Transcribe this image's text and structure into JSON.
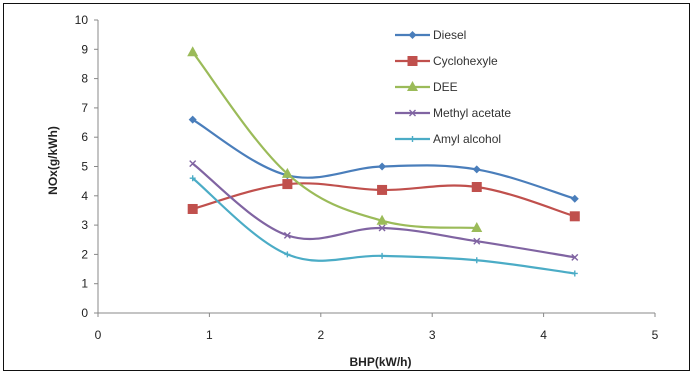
{
  "chart_data": {
    "type": "line",
    "title": "",
    "xlabel": "BHP(kW/h)",
    "ylabel": "NOx(g/kWh)",
    "xlim": [
      0,
      5
    ],
    "ylim": [
      0,
      10
    ],
    "xticks": [
      0,
      1,
      2,
      3,
      4,
      5
    ],
    "yticks": [
      0,
      1,
      2,
      3,
      4,
      5,
      6,
      7,
      8,
      9,
      10
    ],
    "grid": false,
    "legend_position": "top-right",
    "series": [
      {
        "name": "Diesel",
        "color": "#4a7ebb",
        "marker": "diamond",
        "x": [
          0.85,
          1.7,
          2.55,
          3.4,
          4.28
        ],
        "y": [
          6.6,
          4.7,
          5.0,
          4.9,
          3.9
        ]
      },
      {
        "name": "Cyclohexyle",
        "color": "#c0504d",
        "marker": "square",
        "x": [
          0.85,
          1.7,
          2.55,
          3.4,
          4.28
        ],
        "y": [
          3.55,
          4.4,
          4.2,
          4.3,
          3.3
        ]
      },
      {
        "name": "DEE",
        "color": "#9bbb59",
        "marker": "triangle",
        "x": [
          0.85,
          1.7,
          2.55,
          3.4
        ],
        "y": [
          8.9,
          4.75,
          3.15,
          2.9
        ]
      },
      {
        "name": "Methyl acetate",
        "color": "#8064a2",
        "marker": "x",
        "x": [
          0.85,
          1.7,
          2.55,
          3.4,
          4.28
        ],
        "y": [
          5.1,
          2.65,
          2.9,
          2.45,
          1.9
        ]
      },
      {
        "name": "Amyl alcohol",
        "color": "#4bacc6",
        "marker": "star",
        "x": [
          0.85,
          1.7,
          2.55,
          3.4,
          4.28
        ],
        "y": [
          4.6,
          2.0,
          1.95,
          1.8,
          1.35
        ]
      }
    ]
  }
}
